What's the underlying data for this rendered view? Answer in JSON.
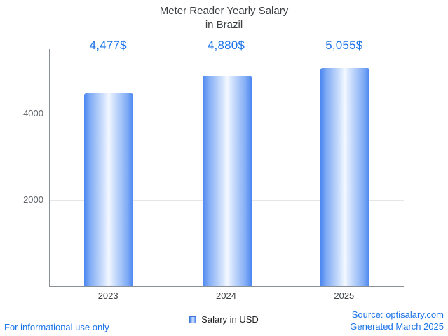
{
  "title": {
    "line1": "Meter Reader Yearly Salary",
    "line2": "in Brazil"
  },
  "chart_data": {
    "type": "bar",
    "title": "Meter Reader Yearly Salary in Brazil",
    "categories": [
      "2023",
      "2024",
      "2025"
    ],
    "values": [
      4477,
      4880,
      5055
    ],
    "value_labels": [
      "4,477$",
      "4,880$",
      "5,055$"
    ],
    "xlabel": "",
    "ylabel": "",
    "ylim": [
      0,
      5500
    ],
    "yticks": [
      2000,
      4000
    ],
    "grid": true,
    "legend": "Salary in USD",
    "legend_position": "bottom",
    "bar_color_edge": "#4c86f0",
    "bar_color_center": "#f4f8ff"
  },
  "footer": {
    "disclaimer": "For informational use only",
    "source": "Source: optisalary.com",
    "generated": "Generated March 2025"
  },
  "colors": {
    "accent_blue": "#1a73e8",
    "title_text": "#3c4043",
    "axis": "#8a9096",
    "gridline": "#e4e6e9",
    "tick_text": "#5f6368",
    "legend_text": "#202124",
    "background": "#ffffff"
  }
}
